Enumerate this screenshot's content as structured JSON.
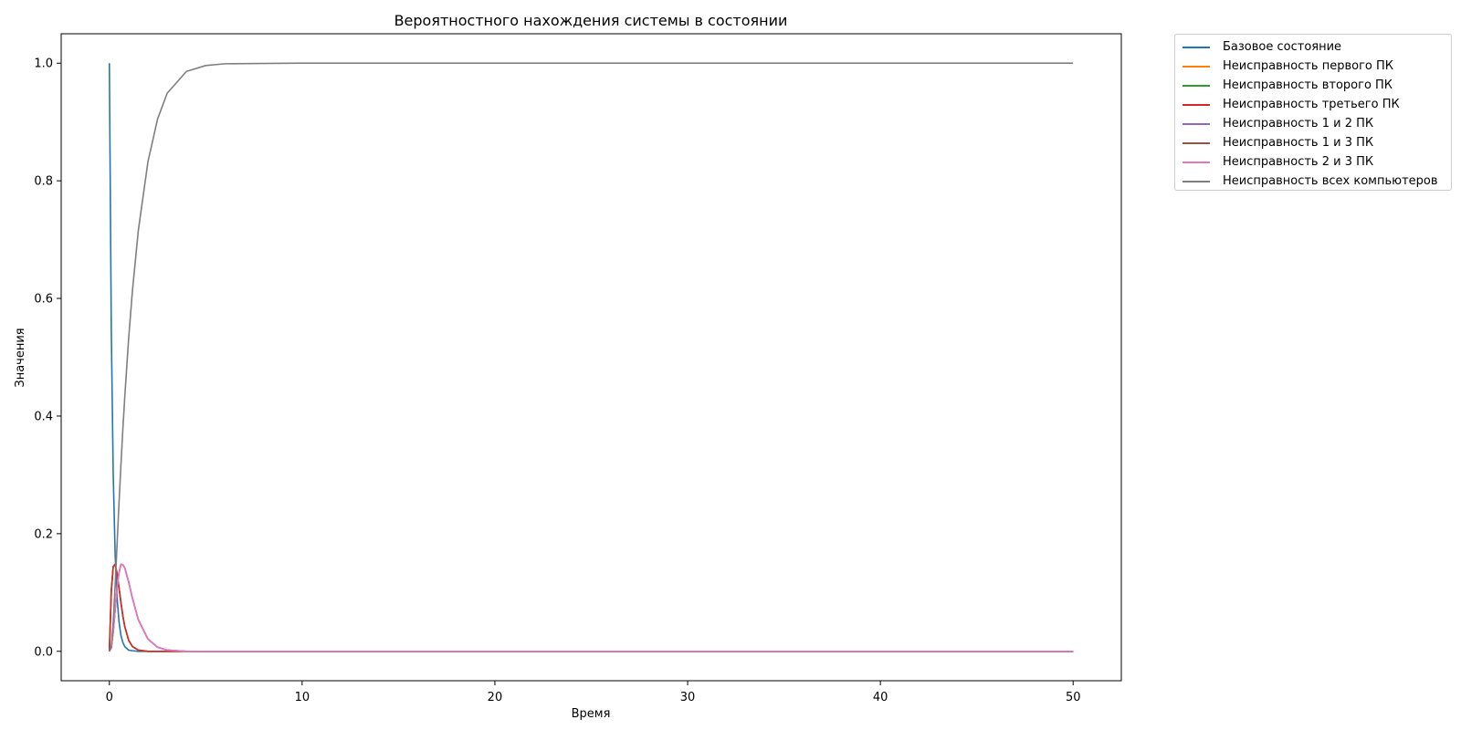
{
  "chart_data": {
    "type": "line",
    "title": "Вероятностного нахождения системы в состоянии",
    "xlabel": "Время",
    "ylabel": "Значения",
    "xlim": [
      -2.5,
      52.5
    ],
    "ylim": [
      -0.05,
      1.05
    ],
    "x_ticks": [
      {
        "value": 0,
        "label": "0"
      },
      {
        "value": 10,
        "label": "10"
      },
      {
        "value": 20,
        "label": "20"
      },
      {
        "value": 30,
        "label": "30"
      },
      {
        "value": 40,
        "label": "40"
      },
      {
        "value": 50,
        "label": "50"
      }
    ],
    "y_ticks": [
      {
        "value": 0.0,
        "label": "0.0"
      },
      {
        "value": 0.2,
        "label": "0.2"
      },
      {
        "value": 0.4,
        "label": "0.4"
      },
      {
        "value": 0.6,
        "label": "0.6"
      },
      {
        "value": 0.8,
        "label": "0.8"
      },
      {
        "value": 1.0,
        "label": "1.0"
      }
    ],
    "grid": false,
    "legend_placement": "outside-top-right",
    "x": [
      0,
      0.1,
      0.2,
      0.3,
      0.4,
      0.5,
      0.6,
      0.7,
      0.8,
      1.0,
      1.2,
      1.5,
      2.0,
      2.5,
      3.0,
      4.0,
      5.0,
      6.0,
      10.0,
      20.0,
      30.0,
      40.0,
      50.0
    ],
    "series": [
      {
        "name": "Базовое состояние",
        "color": "#1f77b4",
        "values": [
          1.0,
          0.549,
          0.301,
          0.165,
          0.091,
          0.05,
          0.027,
          0.015,
          0.008,
          0.002,
          0.001,
          0.0,
          0.0,
          0.0,
          0.0,
          0.0,
          0.0,
          0.0,
          0.0,
          0.0,
          0.0,
          0.0,
          0.0
        ]
      },
      {
        "name": "Неисправность первого ПК",
        "color": "#ff7f0e",
        "values": [
          0.0,
          0.102,
          0.144,
          0.148,
          0.132,
          0.108,
          0.083,
          0.06,
          0.042,
          0.019,
          0.008,
          0.002,
          0.0,
          0.0,
          0.0,
          0.0,
          0.0,
          0.0,
          0.0,
          0.0,
          0.0,
          0.0,
          0.0
        ]
      },
      {
        "name": "Неисправность второго ПК",
        "color": "#2ca02c",
        "values": [
          0.0,
          0.102,
          0.144,
          0.148,
          0.132,
          0.108,
          0.083,
          0.06,
          0.042,
          0.019,
          0.008,
          0.002,
          0.0,
          0.0,
          0.0,
          0.0,
          0.0,
          0.0,
          0.0,
          0.0,
          0.0,
          0.0,
          0.0
        ]
      },
      {
        "name": "Неисправность третьего ПК",
        "color": "#d62728",
        "values": [
          0.0,
          0.102,
          0.144,
          0.148,
          0.132,
          0.108,
          0.083,
          0.06,
          0.042,
          0.019,
          0.008,
          0.002,
          0.0,
          0.0,
          0.0,
          0.0,
          0.0,
          0.0,
          0.0,
          0.0,
          0.0,
          0.0,
          0.0
        ]
      },
      {
        "name": "Неисправность 1 и 2 ПК",
        "color": "#9467bd",
        "values": [
          0.0,
          0.006,
          0.033,
          0.071,
          0.108,
          0.134,
          0.148,
          0.147,
          0.142,
          0.118,
          0.09,
          0.054,
          0.021,
          0.007,
          0.002,
          0.0,
          0.0,
          0.0,
          0.0,
          0.0,
          0.0,
          0.0,
          0.0
        ]
      },
      {
        "name": "Неисправность 1 и 3 ПК",
        "color": "#8c564b",
        "values": [
          0.0,
          0.006,
          0.033,
          0.071,
          0.108,
          0.134,
          0.148,
          0.147,
          0.142,
          0.118,
          0.09,
          0.054,
          0.021,
          0.007,
          0.002,
          0.0,
          0.0,
          0.0,
          0.0,
          0.0,
          0.0,
          0.0,
          0.0
        ]
      },
      {
        "name": "Неисправность 2 и 3 ПК",
        "color": "#e377c2",
        "values": [
          0.0,
          0.006,
          0.033,
          0.071,
          0.108,
          0.134,
          0.148,
          0.147,
          0.142,
          0.118,
          0.09,
          0.054,
          0.021,
          0.007,
          0.002,
          0.0,
          0.0,
          0.0,
          0.0,
          0.0,
          0.0,
          0.0,
          0.0
        ]
      },
      {
        "name": "Неисправность всех компьютеров",
        "color": "#7f7f7f",
        "values": [
          0.0,
          0.008,
          0.049,
          0.112,
          0.182,
          0.252,
          0.317,
          0.378,
          0.433,
          0.532,
          0.614,
          0.715,
          0.832,
          0.905,
          0.949,
          0.986,
          0.996,
          0.999,
          1.0,
          1.0,
          1.0,
          1.0,
          1.0
        ]
      }
    ]
  }
}
